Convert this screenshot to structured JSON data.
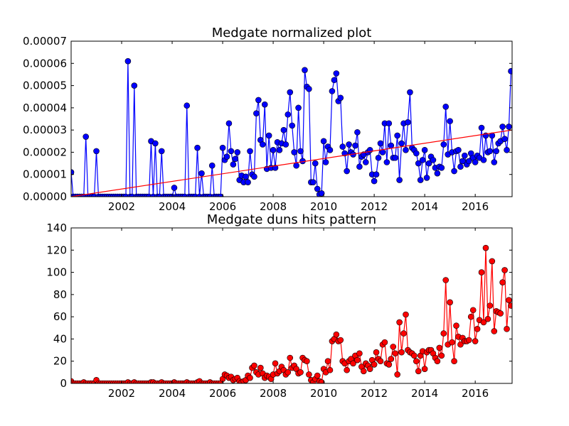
{
  "chart_data": [
    {
      "type": "line",
      "title": "Medgate normalized plot",
      "xlim": [
        2000,
        2017.46
      ],
      "xticks": [
        2002,
        2004,
        2006,
        2008,
        2010,
        2012,
        2014,
        2016
      ],
      "ylim": [
        0,
        7e-05
      ],
      "yticks": [
        {
          "value": 0,
          "label": "0.00000"
        },
        {
          "value": 1e-05,
          "label": "0.00001"
        },
        {
          "value": 2e-05,
          "label": "0.00002"
        },
        {
          "value": 3e-05,
          "label": "0.00003"
        },
        {
          "value": 4e-05,
          "label": "0.00004"
        },
        {
          "value": 5e-05,
          "label": "0.00005"
        },
        {
          "value": 6e-05,
          "label": "0.00006"
        },
        {
          "value": 7e-05,
          "label": "0.00007"
        }
      ],
      "series": [
        {
          "color": "#0000ff",
          "x": [
            2000,
            2000.083,
            2000.167,
            2000.25,
            2000.333,
            2000.417,
            2000.5,
            2000.583,
            2000.667,
            2000.75,
            2000.833,
            2000.917,
            2001,
            2001.083,
            2001.167,
            2001.25,
            2001.333,
            2001.417,
            2001.5,
            2001.583,
            2001.667,
            2001.75,
            2001.833,
            2001.917,
            2002,
            2002.083,
            2002.167,
            2002.25,
            2002.333,
            2002.417,
            2002.5,
            2002.583,
            2002.667,
            2002.75,
            2002.833,
            2002.917,
            2003,
            2003.083,
            2003.167,
            2003.25,
            2003.333,
            2003.417,
            2003.5,
            2003.583,
            2003.667,
            2003.75,
            2003.833,
            2003.917,
            2004,
            2004.083,
            2004.167,
            2004.25,
            2004.333,
            2004.417,
            2004.5,
            2004.583,
            2004.667,
            2004.75,
            2004.833,
            2004.917,
            2005,
            2005.083,
            2005.167,
            2005.25,
            2005.333,
            2005.417,
            2005.5,
            2005.583,
            2005.667,
            2005.75,
            2005.833,
            2005.917,
            2006,
            2006.083,
            2006.167,
            2006.25,
            2006.333,
            2006.417,
            2006.5,
            2006.583,
            2006.667,
            2006.75,
            2006.833,
            2006.917,
            2007,
            2007.083,
            2007.167,
            2007.25,
            2007.333,
            2007.417,
            2007.5,
            2007.583,
            2007.667,
            2007.75,
            2007.833,
            2007.917,
            2008,
            2008.083,
            2008.167,
            2008.25,
            2008.333,
            2008.417,
            2008.5,
            2008.583,
            2008.667,
            2008.75,
            2008.833,
            2008.917,
            2009,
            2009.083,
            2009.167,
            2009.25,
            2009.333,
            2009.417,
            2009.5,
            2009.583,
            2009.667,
            2009.75,
            2009.833,
            2009.917,
            2010,
            2010.083,
            2010.167,
            2010.25,
            2010.333,
            2010.417,
            2010.5,
            2010.583,
            2010.667,
            2010.75,
            2010.833,
            2010.917,
            2011,
            2011.083,
            2011.167,
            2011.25,
            2011.333,
            2011.417,
            2011.5,
            2011.583,
            2011.667,
            2011.75,
            2011.833,
            2011.917,
            2012,
            2012.083,
            2012.167,
            2012.25,
            2012.333,
            2012.417,
            2012.5,
            2012.583,
            2012.667,
            2012.75,
            2012.833,
            2012.917,
            2013,
            2013.083,
            2013.167,
            2013.25,
            2013.333,
            2013.417,
            2013.5,
            2013.583,
            2013.667,
            2013.75,
            2013.833,
            2013.917,
            2014,
            2014.083,
            2014.167,
            2014.25,
            2014.333,
            2014.417,
            2014.5,
            2014.583,
            2014.667,
            2014.75,
            2014.833,
            2014.917,
            2015,
            2015.083,
            2015.167,
            2015.25,
            2015.333,
            2015.417,
            2015.5,
            2015.583,
            2015.667,
            2015.75,
            2015.833,
            2015.917,
            2016,
            2016.083,
            2016.167,
            2016.25,
            2016.333,
            2016.417,
            2016.5,
            2016.583,
            2016.667,
            2016.75,
            2016.833,
            2016.917,
            2017,
            2017.083,
            2017.167,
            2017.25,
            2017.333,
            2017.417
          ],
          "values": [
            1.1e-05,
            0,
            0,
            0,
            0,
            0,
            0,
            2.7e-05,
            0,
            0,
            0,
            0,
            2.05e-05,
            0,
            0,
            0,
            0,
            0,
            0,
            0,
            0,
            0,
            0,
            0,
            0,
            0,
            0,
            6.1e-05,
            0,
            0,
            5e-05,
            0,
            0,
            0,
            0,
            0,
            0,
            0,
            2.5e-05,
            0,
            2.4e-05,
            0,
            0,
            2.05e-05,
            0,
            0,
            0,
            0,
            0,
            4e-06,
            0,
            0,
            0,
            0,
            0,
            4.1e-05,
            0,
            0,
            0,
            0,
            2.2e-05,
            0,
            1.05e-05,
            0,
            0,
            0,
            0,
            1.4e-05,
            0,
            0,
            0,
            0,
            2.2e-05,
            1.65e-05,
            1.8e-05,
            3.3e-05,
            2.05e-05,
            1.45e-05,
            1.7e-05,
            2e-05,
            7.5e-06,
            9.5e-06,
            6.5e-06,
            9e-06,
            6.5e-06,
            2.05e-05,
            1e-05,
            9e-06,
            3.75e-05,
            4.35e-05,
            2.55e-05,
            2.35e-05,
            4.15e-05,
            1.25e-05,
            2.75e-05,
            1.3e-05,
            2.1e-05,
            1.3e-05,
            2.45e-05,
            2.1e-05,
            2.4e-05,
            3e-05,
            2.35e-05,
            3.7e-05,
            4.7e-05,
            3.2e-05,
            2e-05,
            1.4e-05,
            4e-05,
            2.05e-05,
            1.6e-05,
            5.7e-05,
            4.95e-05,
            4.85e-05,
            6.5e-06,
            6.5e-06,
            1.5e-05,
            3.5e-06,
            1e-06,
            1.5e-06,
            2.5e-05,
            1.55e-05,
            2.25e-05,
            2.1e-05,
            4.75e-05,
            5.25e-05,
            5.55e-05,
            4.3e-05,
            4.45e-05,
            2.25e-05,
            1.95e-05,
            1.15e-05,
            2.35e-05,
            2e-05,
            1.9e-05,
            2.3e-05,
            2.9e-05,
            1.35e-05,
            1.8e-05,
            1.9e-05,
            1.55e-05,
            2e-05,
            2.1e-05,
            1e-05,
            7e-06,
            1e-05,
            1.75e-05,
            2.4e-05,
            2e-05,
            3.3e-05,
            1.55e-05,
            3.3e-05,
            2.3e-05,
            1.75e-05,
            1.75e-05,
            2.75e-05,
            7.5e-06,
            2.4e-05,
            3.3e-05,
            2.1e-05,
            3.35e-05,
            4.7e-05,
            2.2e-05,
            2.1e-05,
            1.95e-05,
            1.5e-05,
            7.5e-06,
            1.65e-05,
            2.1e-05,
            8.5e-06,
            1.5e-05,
            1.8e-05,
            1.65e-05,
            1.3e-05,
            1.05e-05,
            1.35e-05,
            1.3e-05,
            2.35e-05,
            4.05e-05,
            1.9e-05,
            3.4e-05,
            2e-05,
            1.15e-05,
            2.05e-05,
            2.1e-05,
            1.35e-05,
            1.6e-05,
            1.85e-05,
            1.45e-05,
            1.6e-05,
            1.95e-05,
            1.75e-05,
            1.55e-05,
            1.85e-05,
            1.75e-05,
            3.1e-05,
            1.65e-05,
            2.75e-05,
            2e-05,
            2.05e-05,
            2.75e-05,
            1.55e-05,
            2.05e-05,
            2.4e-05,
            2.5e-05,
            3.15e-05,
            2.6e-05,
            2.1e-05,
            3.15e-05,
            5.65e-05
          ]
        }
      ],
      "trend": {
        "color": "#ff0000",
        "x": [
          2000,
          2017.46
        ],
        "values": [
          0,
          3e-05
        ]
      }
    },
    {
      "type": "line",
      "title": "Medgate duns hits pattern",
      "xlim": [
        2000,
        2017.46
      ],
      "xticks": [
        2002,
        2004,
        2006,
        2008,
        2010,
        2012,
        2014,
        2016
      ],
      "ylim": [
        0,
        140
      ],
      "yticks": [
        0,
        20,
        40,
        60,
        80,
        100,
        120,
        140
      ],
      "series": [
        {
          "color": "#ff0000",
          "x": [
            2000,
            2000.083,
            2000.167,
            2000.25,
            2000.333,
            2000.417,
            2000.5,
            2000.583,
            2000.667,
            2000.75,
            2000.833,
            2000.917,
            2001,
            2001.083,
            2001.167,
            2001.25,
            2001.333,
            2001.417,
            2001.5,
            2001.583,
            2001.667,
            2001.75,
            2001.833,
            2001.917,
            2002,
            2002.083,
            2002.167,
            2002.25,
            2002.333,
            2002.417,
            2002.5,
            2002.583,
            2002.667,
            2002.75,
            2002.833,
            2002.917,
            2003,
            2003.083,
            2003.167,
            2003.25,
            2003.333,
            2003.417,
            2003.5,
            2003.583,
            2003.667,
            2003.75,
            2003.833,
            2003.917,
            2004,
            2004.083,
            2004.167,
            2004.25,
            2004.333,
            2004.417,
            2004.5,
            2004.583,
            2004.667,
            2004.75,
            2004.833,
            2004.917,
            2005,
            2005.083,
            2005.167,
            2005.25,
            2005.333,
            2005.417,
            2005.5,
            2005.583,
            2005.667,
            2005.75,
            2005.833,
            2005.917,
            2006,
            2006.083,
            2006.167,
            2006.25,
            2006.333,
            2006.417,
            2006.5,
            2006.583,
            2006.667,
            2006.75,
            2006.833,
            2006.917,
            2007,
            2007.083,
            2007.167,
            2007.25,
            2007.333,
            2007.417,
            2007.5,
            2007.583,
            2007.667,
            2007.75,
            2007.833,
            2007.917,
            2008,
            2008.083,
            2008.167,
            2008.25,
            2008.333,
            2008.417,
            2008.5,
            2008.583,
            2008.667,
            2008.75,
            2008.833,
            2008.917,
            2009,
            2009.083,
            2009.167,
            2009.25,
            2009.333,
            2009.417,
            2009.5,
            2009.583,
            2009.667,
            2009.75,
            2009.833,
            2009.917,
            2010,
            2010.083,
            2010.167,
            2010.25,
            2010.333,
            2010.417,
            2010.5,
            2010.583,
            2010.667,
            2010.75,
            2010.833,
            2010.917,
            2011,
            2011.083,
            2011.167,
            2011.25,
            2011.333,
            2011.417,
            2011.5,
            2011.583,
            2011.667,
            2011.75,
            2011.833,
            2011.917,
            2012,
            2012.083,
            2012.167,
            2012.25,
            2012.333,
            2012.417,
            2012.5,
            2012.583,
            2012.667,
            2012.75,
            2012.833,
            2012.917,
            2013,
            2013.083,
            2013.167,
            2013.25,
            2013.333,
            2013.417,
            2013.5,
            2013.583,
            2013.667,
            2013.75,
            2013.833,
            2013.917,
            2014,
            2014.083,
            2014.167,
            2014.25,
            2014.333,
            2014.417,
            2014.5,
            2014.583,
            2014.667,
            2014.75,
            2014.833,
            2014.917,
            2015,
            2015.083,
            2015.167,
            2015.25,
            2015.333,
            2015.417,
            2015.5,
            2015.583,
            2015.667,
            2015.75,
            2015.833,
            2015.917,
            2016,
            2016.083,
            2016.167,
            2016.25,
            2016.333,
            2016.417,
            2016.5,
            2016.583,
            2016.667,
            2016.75,
            2016.833,
            2016.917,
            2017,
            2017.083,
            2017.167,
            2017.25,
            2017.333,
            2017.417
          ],
          "values": [
            2,
            0,
            0,
            0,
            0,
            0,
            1,
            0,
            0,
            0,
            0,
            0,
            3,
            0,
            0,
            0,
            0,
            0,
            0,
            0,
            0,
            0,
            0,
            0,
            0,
            0,
            0,
            1,
            0,
            0,
            1,
            0,
            0,
            0,
            0,
            0,
            0,
            0,
            1,
            1,
            0,
            0,
            0,
            1,
            0,
            0,
            0,
            0,
            0,
            1,
            0,
            0,
            0,
            0,
            0,
            1,
            0,
            0,
            0,
            0,
            1,
            2,
            0,
            0,
            0,
            0,
            1,
            0,
            0,
            0,
            0,
            0,
            4,
            8,
            7,
            5,
            6,
            3,
            4,
            5,
            2,
            1,
            2,
            3,
            7,
            5,
            14,
            16,
            10,
            8,
            14,
            9,
            5,
            7,
            6,
            4,
            8,
            18,
            9,
            11,
            15,
            12,
            8,
            10,
            23,
            14,
            16,
            13,
            9,
            10,
            23,
            21,
            20,
            8,
            3,
            1,
            4,
            7,
            2,
            1,
            13,
            10,
            20,
            12,
            38,
            40,
            44,
            38,
            39,
            20,
            18,
            12,
            20,
            22,
            18,
            25,
            21,
            27,
            15,
            11,
            18,
            16,
            13,
            21,
            17,
            28,
            22,
            20,
            35,
            37,
            18,
            17,
            22,
            33,
            27,
            8,
            55,
            28,
            45,
            62,
            30,
            28,
            27,
            25,
            20,
            11,
            25,
            29,
            13,
            28,
            30,
            30,
            27,
            23,
            20,
            32,
            25,
            45,
            93,
            35,
            73,
            37,
            20,
            52,
            42,
            35,
            41,
            38,
            38,
            39,
            60,
            66,
            38,
            49,
            57,
            100,
            55,
            122,
            58,
            70,
            110,
            47,
            65,
            64,
            63,
            91,
            102,
            49,
            75,
            70
          ]
        }
      ]
    }
  ]
}
